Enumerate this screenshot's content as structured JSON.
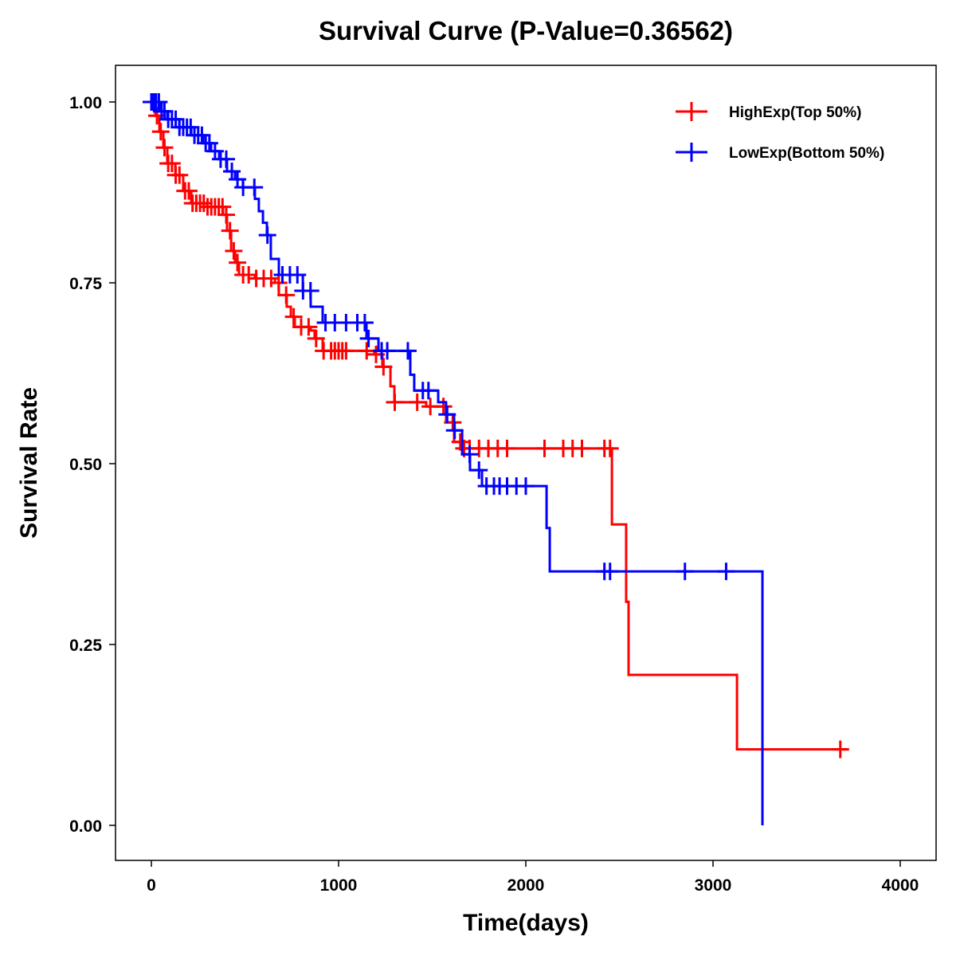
{
  "chart_data": {
    "type": "line",
    "title": "Survival Curve (P-Value=0.36562)",
    "xlabel": "Time(days)",
    "ylabel": "Survival Rate",
    "xlim": [
      -200,
      4200
    ],
    "ylim": [
      -0.05,
      1.05
    ],
    "xticks": [
      0,
      1000,
      2000,
      3000,
      4000
    ],
    "xtick_labels": [
      "0",
      "1000",
      "2000",
      "3000",
      "4000"
    ],
    "yticks": [
      0,
      0.25,
      0.5,
      0.75,
      1.0
    ],
    "ytick_labels": [
      "0.00",
      "0.25",
      "0.50",
      "0.75",
      "1.00"
    ],
    "legend_position": "top-right",
    "series": [
      {
        "name": "HighExp(Top 50%)",
        "color": "#FF0000",
        "steps": [
          [
            0,
            1.0
          ],
          [
            21,
            0.981
          ],
          [
            43,
            0.959
          ],
          [
            64,
            0.937
          ],
          [
            85,
            0.915
          ],
          [
            128,
            0.899
          ],
          [
            170,
            0.877
          ],
          [
            213,
            0.86
          ],
          [
            298,
            0.855
          ],
          [
            383,
            0.844
          ],
          [
            404,
            0.822
          ],
          [
            426,
            0.794
          ],
          [
            447,
            0.778
          ],
          [
            468,
            0.761
          ],
          [
            553,
            0.756
          ],
          [
            660,
            0.75
          ],
          [
            681,
            0.733
          ],
          [
            723,
            0.717
          ],
          [
            745,
            0.703
          ],
          [
            766,
            0.689
          ],
          [
            851,
            0.684
          ],
          [
            872,
            0.673
          ],
          [
            915,
            0.656
          ],
          [
            1191,
            0.651
          ],
          [
            1234,
            0.634
          ],
          [
            1277,
            0.607
          ],
          [
            1298,
            0.585
          ],
          [
            1468,
            0.579
          ],
          [
            1574,
            0.557
          ],
          [
            1617,
            0.53
          ],
          [
            1660,
            0.521
          ],
          [
            2460,
            0.416
          ],
          [
            2536,
            0.309
          ],
          [
            2549,
            0.208
          ],
          [
            3128,
            0.105
          ]
        ],
        "end_time": 3723,
        "censored_times": [
          10,
          30,
          50,
          70,
          90,
          110,
          130,
          150,
          180,
          200,
          220,
          240,
          260,
          280,
          300,
          320,
          340,
          360,
          380,
          400,
          420,
          440,
          460,
          490,
          520,
          560,
          600,
          640,
          680,
          720,
          760,
          800,
          840,
          880,
          920,
          960,
          980,
          1000,
          1020,
          1040,
          1150,
          1200,
          1240,
          1300,
          1420,
          1490,
          1560,
          1610,
          1650,
          1670,
          1700,
          1750,
          1800,
          1850,
          1900,
          2100,
          2200,
          2250,
          2300,
          2420,
          2450,
          3680
        ]
      },
      {
        "name": "LowExp(Bottom 50%)",
        "color": "#0000FF",
        "steps": [
          [
            0,
            1.0
          ],
          [
            43,
            0.987
          ],
          [
            85,
            0.976
          ],
          [
            149,
            0.965
          ],
          [
            213,
            0.954
          ],
          [
            277,
            0.943
          ],
          [
            319,
            0.932
          ],
          [
            362,
            0.921
          ],
          [
            404,
            0.904
          ],
          [
            447,
            0.893
          ],
          [
            489,
            0.882
          ],
          [
            553,
            0.866
          ],
          [
            574,
            0.849
          ],
          [
            596,
            0.833
          ],
          [
            617,
            0.816
          ],
          [
            638,
            0.783
          ],
          [
            681,
            0.761
          ],
          [
            809,
            0.739
          ],
          [
            851,
            0.717
          ],
          [
            915,
            0.695
          ],
          [
            1149,
            0.673
          ],
          [
            1213,
            0.656
          ],
          [
            1383,
            0.623
          ],
          [
            1404,
            0.601
          ],
          [
            1532,
            0.585
          ],
          [
            1574,
            0.568
          ],
          [
            1617,
            0.546
          ],
          [
            1660,
            0.513
          ],
          [
            1702,
            0.491
          ],
          [
            1766,
            0.469
          ],
          [
            2111,
            0.411
          ],
          [
            2128,
            0.351
          ],
          [
            3264,
            0.0
          ]
        ],
        "end_time": 3264,
        "censored_times": [
          0,
          5,
          15,
          25,
          40,
          55,
          70,
          90,
          110,
          130,
          150,
          170,
          190,
          210,
          230,
          250,
          270,
          290,
          310,
          340,
          370,
          400,
          430,
          460,
          490,
          550,
          620,
          700,
          740,
          780,
          810,
          850,
          930,
          980,
          1040,
          1100,
          1140,
          1160,
          1230,
          1260,
          1370,
          1450,
          1480,
          1580,
          1620,
          1700,
          1750,
          1790,
          1830,
          1860,
          1900,
          1950,
          2000,
          2420,
          2450,
          2850,
          3070
        ]
      }
    ]
  }
}
